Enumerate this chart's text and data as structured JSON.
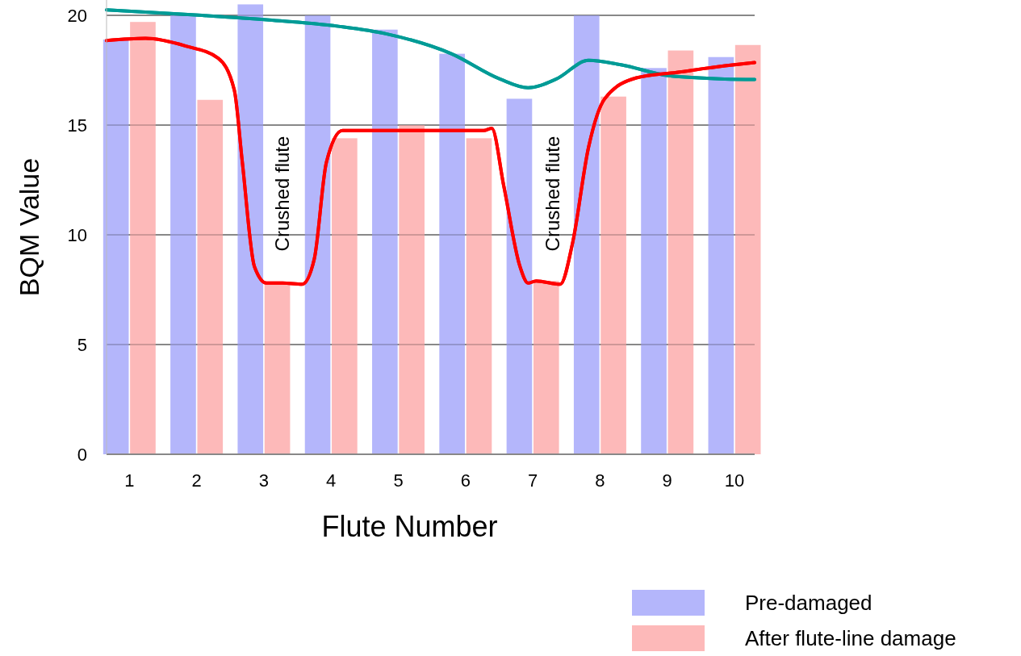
{
  "chart_data": {
    "type": "bar",
    "xlabel": "Flute Number",
    "ylabel": "BQM Value",
    "x": [
      1,
      2,
      3,
      4,
      5,
      6,
      7,
      8,
      9,
      10
    ],
    "xlim": [
      0.66,
      10.3
    ],
    "xticks": [
      1,
      2,
      3,
      4,
      5,
      6,
      7,
      8,
      9,
      10
    ],
    "ylim": [
      0,
      20.7
    ],
    "yticks": [
      0,
      5,
      10,
      15,
      20
    ],
    "grid": "y",
    "legend": "bottom right",
    "series": [
      {
        "name": "Pre-damaged",
        "color": "#b4b6fb",
        "values": [
          18.9,
          20,
          20.5,
          20,
          19.35,
          18.25,
          16.2,
          20,
          17.6,
          18.1
        ]
      },
      {
        "name": "After flute-line damage",
        "color": "#fdb9b9",
        "values": [
          19.7,
          16.15,
          7.8,
          14.4,
          15,
          14.4,
          7.9,
          16.3,
          18.4,
          18.65
        ]
      },
      {
        "type": "line",
        "color": "#009b96",
        "x": [
          0.66,
          2.08,
          3.04,
          4.11,
          4.83,
          5.79,
          6.51,
          6.93,
          7.35,
          7.83,
          8.31,
          9.02,
          9.86,
          10.3
        ],
        "values": [
          20.25,
          20,
          19.8,
          19.5,
          19.15,
          18.25,
          17.1,
          16.7,
          17.1,
          17.95,
          17.75,
          17.25,
          17.1,
          17.08
        ]
      },
      {
        "type": "line",
        "color": "#ff0000",
        "x": [
          0.66,
          1.24,
          1.84,
          2.32,
          2.56,
          2.68,
          2.86,
          3.04,
          3.28,
          3.57,
          3.75,
          3.93,
          4.17,
          4.83,
          5.79,
          6.27,
          6.39,
          6.57,
          6.81,
          6.93,
          7.05,
          7.41,
          7.59,
          7.83,
          8.07,
          8.54,
          9.14,
          9.86,
          10.3
        ],
        "values": [
          18.85,
          18.95,
          18.6,
          18.05,
          16.6,
          13.3,
          8.55,
          7.8,
          7.8,
          7.75,
          8.9,
          13.3,
          14.75,
          14.75,
          14.75,
          14.75,
          14.85,
          12.2,
          8.55,
          7.8,
          7.9,
          7.75,
          9.6,
          14,
          16.2,
          17.15,
          17.4,
          17.7,
          17.85
        ]
      }
    ],
    "annotations": [
      "Crushed flute",
      "Crushed flute"
    ]
  }
}
